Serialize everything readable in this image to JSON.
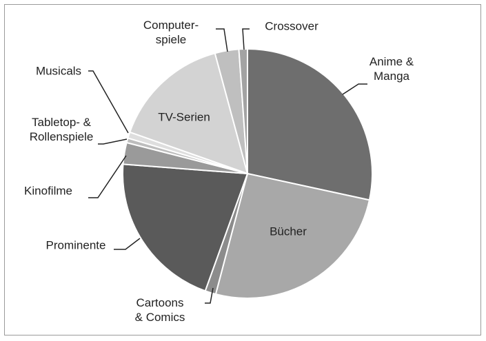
{
  "chart_data": {
    "type": "pie",
    "categories": [
      "Anime &\nManga",
      "Bücher",
      "Cartoons\n& Comics",
      "Prominente",
      "Kinofilme",
      "Tabletop- &\nRollenspiele",
      "Musicals",
      "TV-Serien",
      "Computer-\nspiele",
      "Crossover"
    ],
    "values": [
      28.4,
      25.7,
      1.4,
      20.7,
      2.8,
      0.6,
      0.8,
      15.4,
      3.1,
      1.1
    ],
    "colors": [
      "#6e6e6e",
      "#a8a8a8",
      "#8c8c8c",
      "#5a5a5a",
      "#9a9a9a",
      "#bdbdbd",
      "#dedede",
      "#d3d3d3",
      "#bfbfbf",
      "#a3a3a3"
    ]
  }
}
